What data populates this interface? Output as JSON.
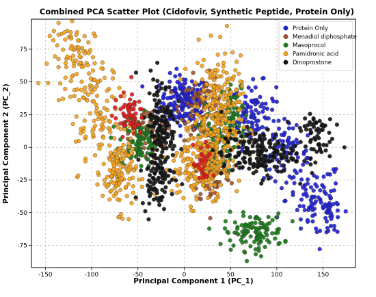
{
  "chart_data": {
    "type": "scatter",
    "title": "Combined PCA Scatter Plot (Cidofovir, Synthetic Peptide, Protein Only)",
    "xlabel": "Principal Component 1 (PC_1)",
    "ylabel": "Principal Component 2 (PC_2)",
    "xlim": [
      -165,
      185
    ],
    "ylim": [
      -92,
      98
    ],
    "xticks": [
      -150,
      -100,
      -50,
      0,
      50,
      100,
      150
    ],
    "yticks": [
      -75,
      -50,
      -25,
      0,
      25,
      50,
      75
    ],
    "grid": true,
    "legend_position": "top-right",
    "series": [
      {
        "name": "Protein Only",
        "color": "#1f1fd6",
        "regions": [
          {
            "cx": 0,
            "cy": 35,
            "sx": 13,
            "sy": 10,
            "n": 180
          },
          {
            "cx": 75,
            "cy": 25,
            "sx": 12,
            "sy": 12,
            "n": 100
          },
          {
            "cx": 110,
            "cy": -5,
            "sx": 12,
            "sy": 10,
            "n": 60
          },
          {
            "cx": 140,
            "cy": -40,
            "sx": 15,
            "sy": 15,
            "n": 90
          },
          {
            "cx": 160,
            "cy": -55,
            "sx": 6,
            "sy": 9,
            "n": 25
          }
        ]
      },
      {
        "name": "Menadiol diphosphate",
        "color": "#a0522d",
        "regions": [
          {
            "cx": 20,
            "cy": 30,
            "sx": 12,
            "sy": 12,
            "n": 90
          },
          {
            "cx": -40,
            "cy": 10,
            "sx": 10,
            "sy": 10,
            "n": 60
          },
          {
            "cx": 30,
            "cy": -20,
            "sx": 10,
            "sy": 12,
            "n": 70
          }
        ]
      },
      {
        "name": "Masoprocol",
        "color": "#1a7a1a",
        "regions": [
          {
            "cx": -50,
            "cy": 5,
            "sx": 10,
            "sy": 10,
            "n": 100
          },
          {
            "cx": 35,
            "cy": 10,
            "sx": 10,
            "sy": 15,
            "n": 90
          },
          {
            "cx": 55,
            "cy": 25,
            "sx": 7,
            "sy": 12,
            "n": 50
          },
          {
            "cx": 75,
            "cy": -65,
            "sx": 16,
            "sy": 7,
            "n": 110
          }
        ]
      },
      {
        "name": "Pamidronic acid",
        "color": "#f5a21d",
        "regions": [
          {
            "cx": -115,
            "cy": 70,
            "sx": 15,
            "sy": 12,
            "n": 80
          },
          {
            "cx": -95,
            "cy": 40,
            "sx": 15,
            "sy": 12,
            "n": 50
          },
          {
            "cx": -70,
            "cy": -20,
            "sx": 9,
            "sy": 14,
            "n": 130
          },
          {
            "cx": 35,
            "cy": 20,
            "sx": 13,
            "sy": 25,
            "n": 300
          },
          {
            "cx": 15,
            "cy": -15,
            "sx": 14,
            "sy": 14,
            "n": 150
          },
          {
            "cx": -90,
            "cy": 10,
            "sx": 15,
            "sy": 15,
            "n": 50
          }
        ]
      },
      {
        "name": "Dinoprostone",
        "color": "#111111",
        "regions": [
          {
            "cx": -25,
            "cy": 15,
            "sx": 8,
            "sy": 20,
            "n": 150
          },
          {
            "cx": -30,
            "cy": -25,
            "sx": 8,
            "sy": 10,
            "n": 70
          },
          {
            "cx": 80,
            "cy": -5,
            "sx": 20,
            "sy": 9,
            "n": 180
          },
          {
            "cx": 140,
            "cy": 10,
            "sx": 10,
            "sy": 10,
            "n": 60
          }
        ]
      },
      {
        "name": "",
        "color": "#e01b1b",
        "regions": [
          {
            "cx": -60,
            "cy": 25,
            "sx": 8,
            "sy": 8,
            "n": 60
          },
          {
            "cx": 20,
            "cy": -15,
            "sx": 5,
            "sy": 8,
            "n": 30
          }
        ]
      }
    ]
  }
}
